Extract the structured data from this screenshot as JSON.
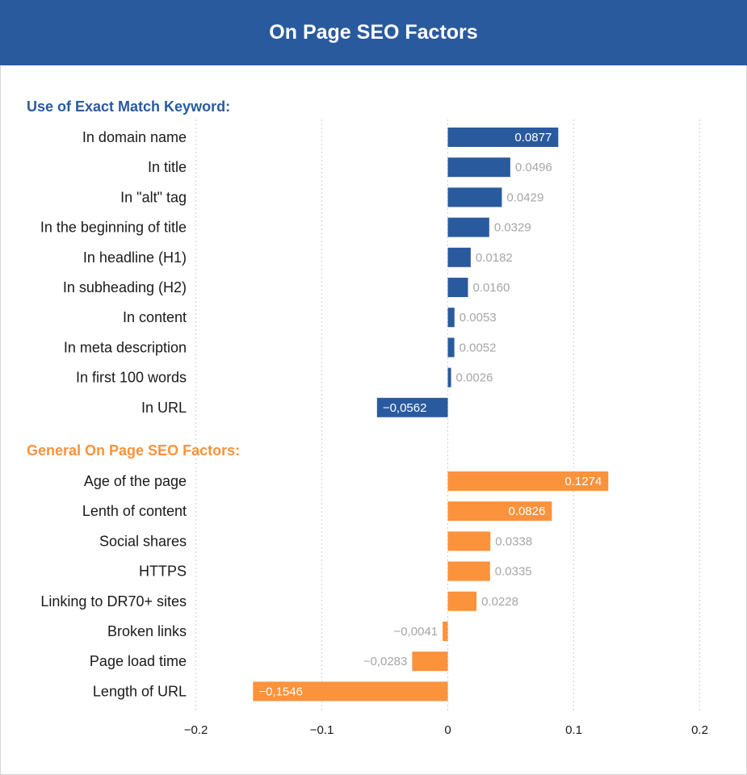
{
  "header": {
    "title": "On Page SEO Factors"
  },
  "colors": {
    "header_bg": "#2a5a9e",
    "series_blue": "#2a5a9e",
    "series_orange": "#fb923c",
    "value_label": "#a6a6a6",
    "grid": "#cfcfcf"
  },
  "chart_data": {
    "type": "bar",
    "orientation": "horizontal",
    "title": "On Page SEO Factors",
    "xlim": [
      -0.2,
      0.2
    ],
    "x_ticks": [
      "−0.2",
      "−0.1",
      "0",
      "0.1",
      "0.2"
    ],
    "x_tick_values": [
      -0.2,
      -0.1,
      0,
      0.1,
      0.2
    ],
    "grid": "vertical dotted",
    "series": [
      {
        "name": "Use of Exact Match Keyword:",
        "color": "#2a5a9e",
        "categories": [
          "In domain name",
          "In title",
          "In \"alt\" tag",
          "In the beginning of title",
          "In headline (H1)",
          "In subheading (H2)",
          "In content",
          "In meta description",
          "In first 100 words",
          "In URL"
        ],
        "values": [
          0.0877,
          0.0496,
          0.0429,
          0.0329,
          0.0182,
          0.016,
          0.0053,
          0.0052,
          0.0026,
          -0.0562
        ],
        "labels": [
          "0.0877",
          "0.0496",
          "0.0429",
          "0.0329",
          "0.0182",
          "0.0160",
          "0.0053",
          "0.0052",
          "0.0026",
          "−0,0562"
        ]
      },
      {
        "name": "General On Page SEO Factors:",
        "color": "#fb923c",
        "categories": [
          "Age of the page",
          "Lenth of content",
          "Social shares",
          "HTTPS",
          "Linking to DR70+ sites",
          "Broken links",
          "Page load time",
          "Length of URL"
        ],
        "values": [
          0.1274,
          0.0826,
          0.0338,
          0.0335,
          0.0228,
          -0.0041,
          -0.0283,
          -0.1546
        ],
        "labels": [
          "0.1274",
          "0.0826",
          "0.0338",
          "0.0335",
          "0.0228",
          "−0,0041",
          "−0,0283",
          "−0,1546"
        ]
      }
    ]
  }
}
